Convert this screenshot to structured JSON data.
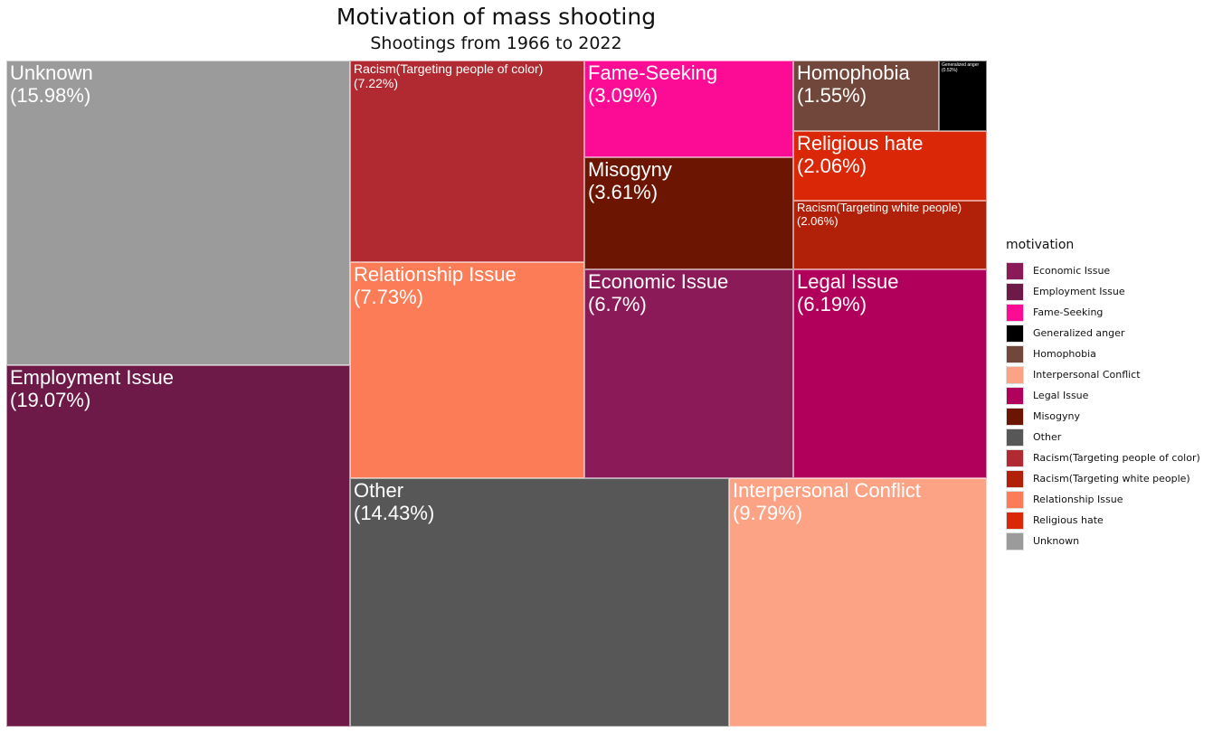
{
  "chart_data": {
    "type": "treemap",
    "title": "Motivation of mass shooting",
    "subtitle": "Shootings from 1966 to 2022",
    "legend_title": "motivation",
    "legend_placement": "right",
    "items": [
      {
        "category": "Employment Issue",
        "label": "Employment Issue",
        "pct_label": "(19.07%)",
        "value": 19.07,
        "color": "#6e1a48"
      },
      {
        "category": "Unknown",
        "label": "Unknown",
        "pct_label": "(15.98%)",
        "value": 15.98,
        "color": "#9b9b9b"
      },
      {
        "category": "Other",
        "label": "Other",
        "pct_label": "(14.43%)",
        "value": 14.43,
        "color": "#575757"
      },
      {
        "category": "Interpersonal Conflict",
        "label": "Interpersonal Conflict",
        "pct_label": "(9.79%)",
        "value": 9.79,
        "color": "#fca386"
      },
      {
        "category": "Relationship Issue",
        "label": "Relationship Issue",
        "pct_label": "(7.73%)",
        "value": 7.73,
        "color": "#fb7c56"
      },
      {
        "category": "Racism(Targeting people of color)",
        "label": "Racism(Targeting people of color)",
        "pct_label": "(7.22%)",
        "value": 7.22,
        "color": "#b12a31"
      },
      {
        "category": "Economic Issue",
        "label": "Economic Issue",
        "pct_label": "(6.7%)",
        "value": 6.7,
        "color": "#8b1a59"
      },
      {
        "category": "Legal Issue",
        "label": "Legal Issue",
        "pct_label": "(6.19%)",
        "value": 6.19,
        "color": "#b1005c"
      },
      {
        "category": "Misogyny",
        "label": "Misogyny",
        "pct_label": "(3.61%)",
        "value": 3.61,
        "color": "#6c1502"
      },
      {
        "category": "Fame-Seeking",
        "label": "Fame-Seeking",
        "pct_label": "(3.09%)",
        "value": 3.09,
        "color": "#fc0b94"
      },
      {
        "category": "Religious hate",
        "label": "Religious hate",
        "pct_label": "(2.06%)",
        "value": 2.06,
        "color": "#d92707"
      },
      {
        "category": "Racism(Targeting white people)",
        "label": "Racism(Targeting white people)",
        "pct_label": "(2.06%)",
        "value": 2.06,
        "color": "#b12109"
      },
      {
        "category": "Homophobia",
        "label": "Homophobia",
        "pct_label": "(1.55%)",
        "value": 1.55,
        "color": "#72473b"
      },
      {
        "category": "Generalized anger",
        "label": "Generalized anger",
        "pct_label": "(0.52%)",
        "value": 0.52,
        "color": "#000000"
      }
    ],
    "legend": [
      {
        "label": "Economic Issue",
        "color": "#8b1a59"
      },
      {
        "label": "Employment Issue",
        "color": "#6e1a48"
      },
      {
        "label": "Fame-Seeking",
        "color": "#fc0b94"
      },
      {
        "label": "Generalized anger",
        "color": "#000000"
      },
      {
        "label": "Homophobia",
        "color": "#72473b"
      },
      {
        "label": "Interpersonal Conflict",
        "color": "#fca386"
      },
      {
        "label": "Legal Issue",
        "color": "#b1005c"
      },
      {
        "label": "Misogyny",
        "color": "#6c1502"
      },
      {
        "label": "Other",
        "color": "#575757"
      },
      {
        "label": "Racism(Targeting people of color)",
        "color": "#b12a31"
      },
      {
        "label": "Racism(Targeting white people)",
        "color": "#b12109"
      },
      {
        "label": "Relationship Issue",
        "color": "#fb7c56"
      },
      {
        "label": "Religious hate",
        "color": "#d92707"
      },
      {
        "label": "Unknown",
        "color": "#9b9b9b"
      }
    ]
  }
}
